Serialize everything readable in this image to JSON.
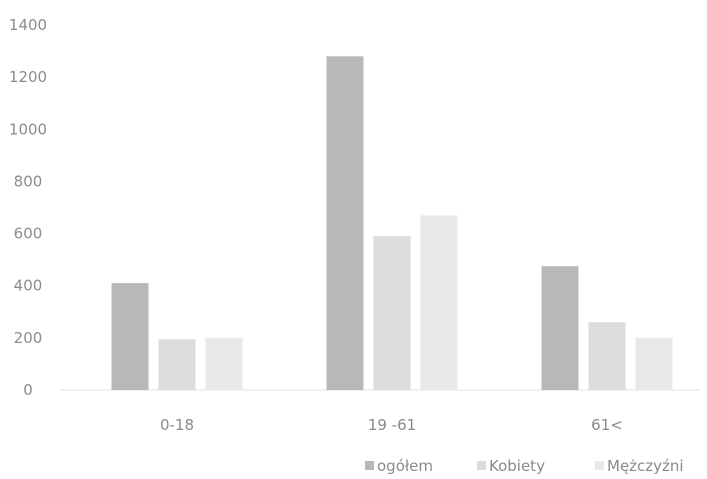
{
  "chart_data": {
    "type": "bar",
    "title": "",
    "xlabel": "",
    "ylabel": "",
    "categories": [
      "0-18",
      "19 -61",
      "61<"
    ],
    "series": [
      {
        "name": "ogółem",
        "values": [
          410,
          1280,
          475
        ],
        "color": "#b8b8b8"
      },
      {
        "name": "Kobiety",
        "values": [
          195,
          590,
          260
        ],
        "color": "#dcdcdc"
      },
      {
        "name": "Mężczyźni",
        "values": [
          200,
          670,
          200
        ],
        "color": "#e8e8e8"
      }
    ],
    "yticks": [
      "0",
      "200",
      "400",
      "600",
      "800",
      "1000",
      "1200",
      "1400"
    ],
    "ylim": [
      0,
      1400
    ],
    "grid": false,
    "legend": "bottom-right"
  }
}
